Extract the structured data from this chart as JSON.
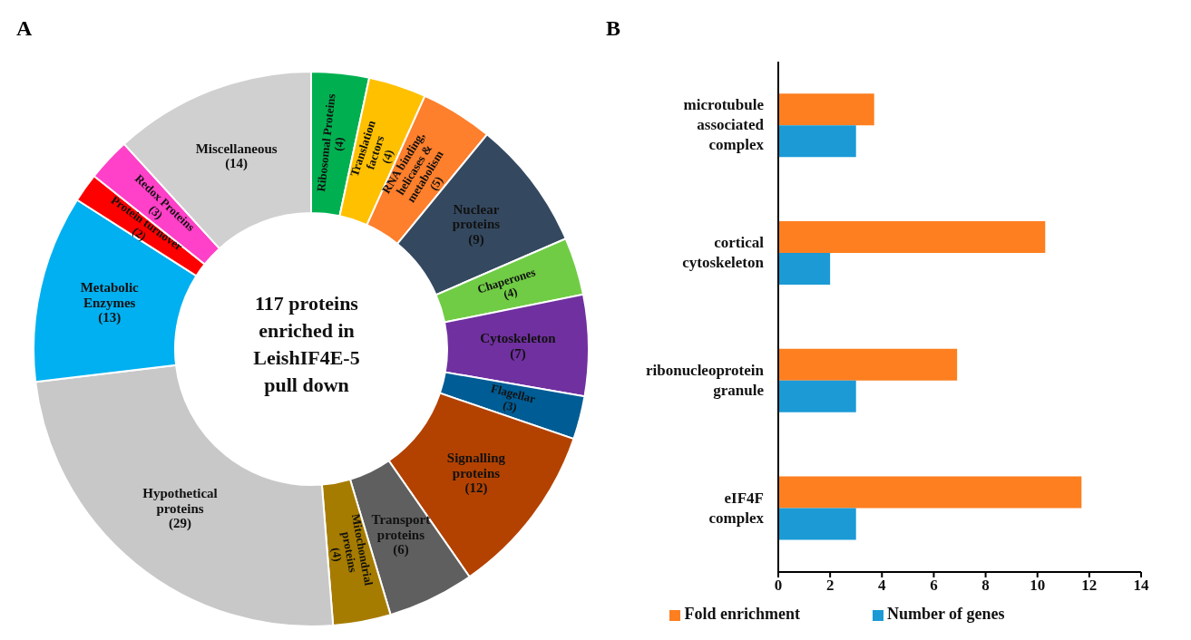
{
  "chart_data": [
    {
      "type": "donut",
      "title": "A",
      "categories": [
        "Ribosomal Proteins",
        "Translation factors",
        "RNA binding, helicases & metabolism",
        "Nuclear proteins",
        "Chaperones",
        "Cytoskeleton",
        "Flagellar",
        "Signalling proteins",
        "Transport proteins",
        "Mitochondrial proteins",
        "Hypothetical proteins",
        "Metabolic Enzymes",
        "Protein turnover",
        "Redox Proteins",
        "Miscellaneous"
      ],
      "values": [
        4,
        4,
        5,
        9,
        4,
        7,
        3,
        12,
        6,
        4,
        29,
        13,
        2,
        3,
        14
      ],
      "value_labels": [
        "(4)",
        "(4)",
        "(5)",
        "(9)",
        "(4)",
        "(7)",
        "(3)",
        "(12)",
        "(6)",
        "(4)",
        "(29)",
        "(13)",
        "(2)",
        "(3)",
        "(14)"
      ],
      "colors": [
        "#00b050",
        "#ffc000",
        "#fe7f2c",
        "#344960",
        "#70cc45",
        "#7030a0",
        "#005c94",
        "#b34200",
        "#5f5f5f",
        "#a67c00",
        "#c8c8c8",
        "#00b0f0",
        "#ff0000",
        "#ff40c8",
        "#d0d0d0"
      ],
      "annotations": [
        "117 proteins enriched in LeishIF4E-5 pull down"
      ]
    },
    {
      "type": "bar",
      "title": "B",
      "orientation": "horizontal",
      "categories": [
        "microtubule associated complex",
        "cortical cytoskeleton",
        "ribonucleoprotein granule",
        "eIF4F complex"
      ],
      "series": [
        {
          "name": "Fold enrichment",
          "color": "#fd7f20",
          "values": [
            3.7,
            10.3,
            6.9,
            11.7
          ]
        },
        {
          "name": "Number of genes",
          "color": "#1b9ad6",
          "values": [
            3,
            2,
            3,
            3
          ]
        }
      ],
      "xlim": [
        0,
        14
      ],
      "xticks": [
        0,
        2,
        4,
        6,
        8,
        10,
        12,
        14
      ],
      "legend": "bottom",
      "grid": false
    }
  ]
}
